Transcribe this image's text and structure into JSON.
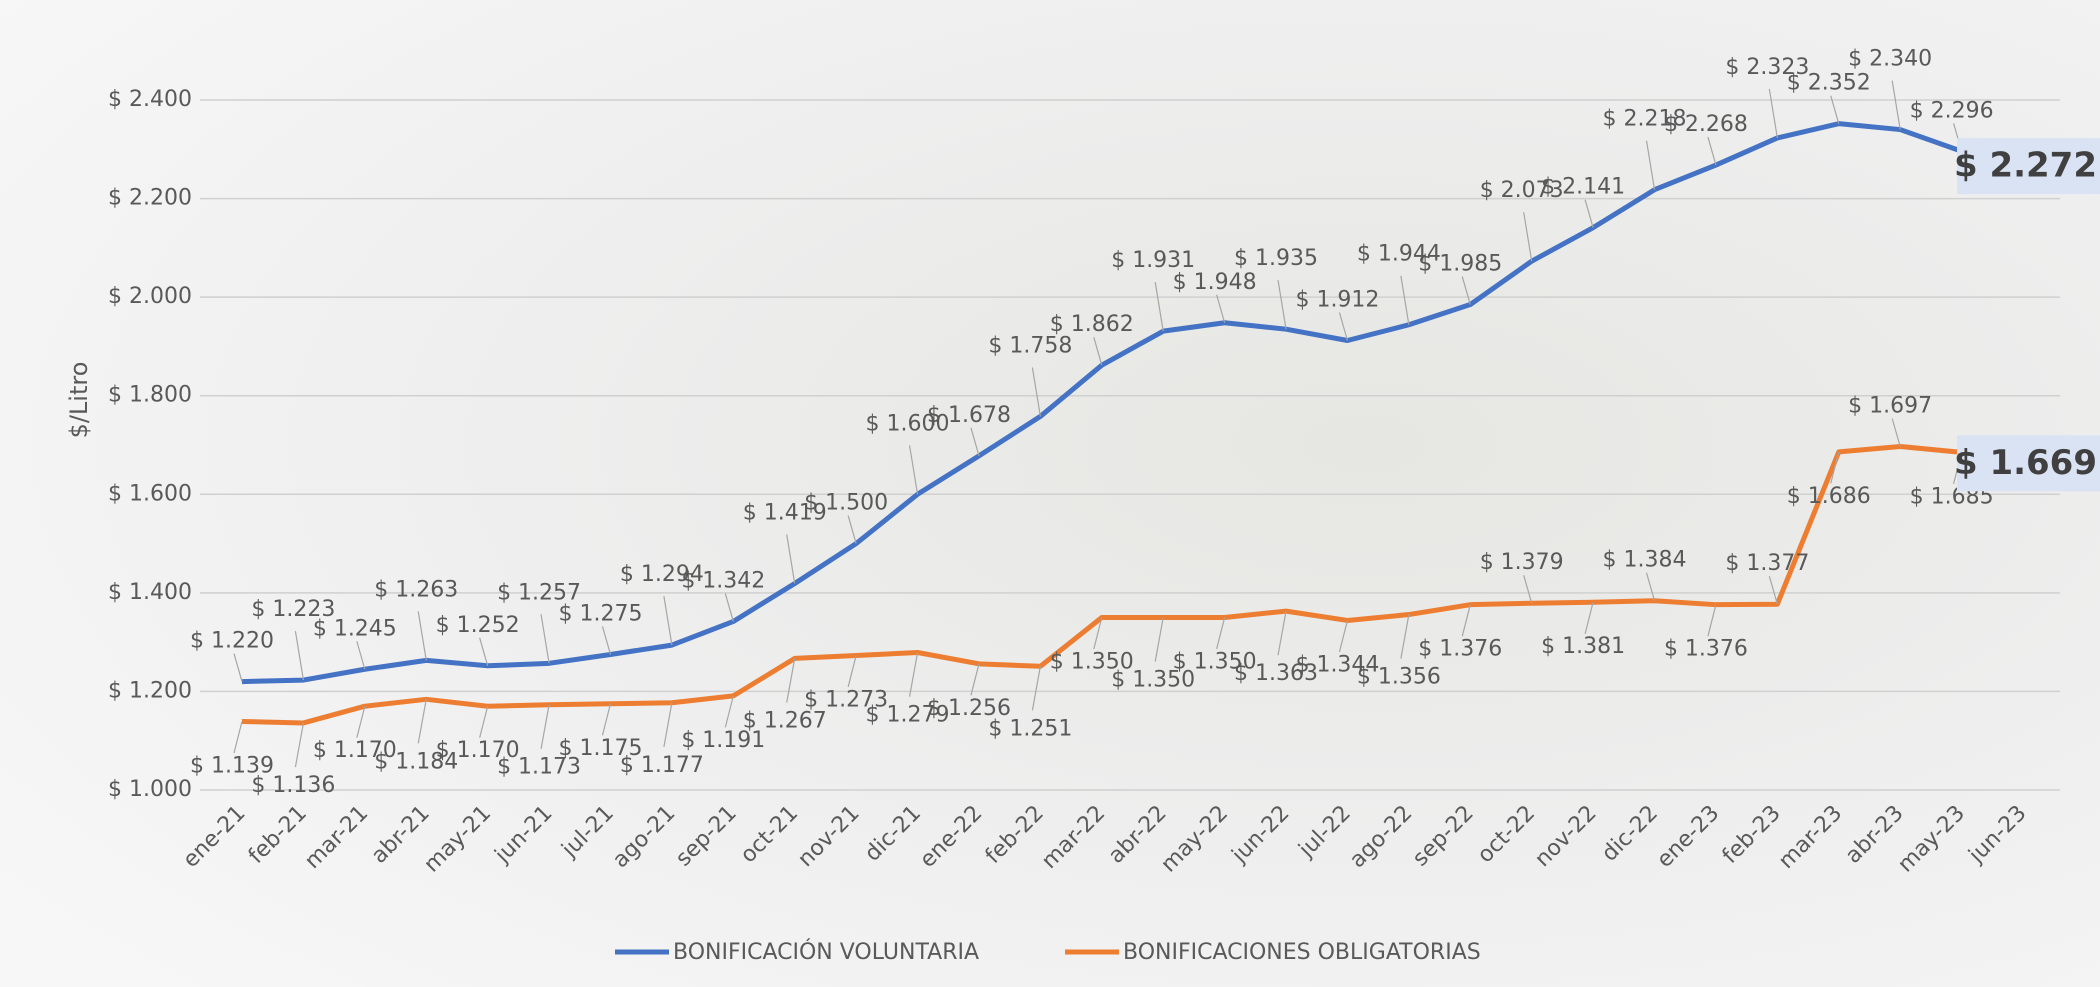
{
  "chart_data": {
    "type": "line",
    "ylabel": "$/Litro",
    "categories": [
      "ene-21",
      "feb-21",
      "mar-21",
      "abr-21",
      "may-21",
      "jun-21",
      "jul-21",
      "ago-21",
      "sep-21",
      "oct-21",
      "nov-21",
      "dic-21",
      "ene-22",
      "feb-22",
      "mar-22",
      "abr-22",
      "may-22",
      "jun-22",
      "jul-22",
      "ago-22",
      "sep-22",
      "oct-22",
      "nov-22",
      "dic-22",
      "ene-23",
      "feb-23",
      "mar-23",
      "abr-23",
      "may-23",
      "jun-23"
    ],
    "series": [
      {
        "name": "BONIFICACIÓN VOLUNTARIA",
        "color": "#4472c4",
        "values": [
          1220,
          1223,
          1245,
          1263,
          1252,
          1257,
          1275,
          1294,
          1342,
          1419,
          1500,
          1600,
          1678,
          1758,
          1862,
          1931,
          1948,
          1935,
          1912,
          1944,
          1985,
          2073,
          2141,
          2218,
          2268,
          2323,
          2352,
          2340,
          2296,
          2272
        ],
        "value_labels": [
          "$ 1.220",
          "$ 1.223",
          "$ 1.245",
          "$ 1.263",
          "$ 1.252",
          "$ 1.257",
          "$ 1.275",
          "$ 1.294",
          "$ 1.342",
          "$ 1.419",
          "$ 1.500",
          "$ 1.600",
          "$ 1.678",
          "$ 1.758",
          "$ 1.862",
          "$ 1.931",
          "$ 1.948",
          "$ 1.935",
          "$ 1.912",
          "$ 1.944",
          "$ 1.985",
          "$ 2.073",
          "$ 2.141",
          "$ 2.218",
          "$ 2.268",
          "$ 2.323",
          "$ 2.352",
          "$ 2.340",
          "$ 2.296",
          "$ 2.272"
        ]
      },
      {
        "name": "BONIFICACIONES OBLIGATORIAS",
        "color": "#ed7d31",
        "values": [
          1139,
          1136,
          1170,
          1184,
          1170,
          1173,
          1175,
          1177,
          1191,
          1267,
          1273,
          1279,
          1256,
          1251,
          1350,
          1350,
          1350,
          1363,
          1344,
          1356,
          1376,
          1379,
          1381,
          1384,
          1376,
          1377,
          1686,
          1697,
          1685,
          1669
        ],
        "value_labels": [
          "$ 1.139",
          "$ 1.136",
          "$ 1.170",
          "$ 1.184",
          "$ 1.170",
          "$ 1.173",
          "$ 1.175",
          "$ 1.177",
          "$ 1.191",
          "$ 1.267",
          "$ 1.273",
          "$ 1.279",
          "$ 1.256",
          "$ 1.251",
          "$ 1.350",
          "$ 1.350",
          "$ 1.350",
          "$ 1.363",
          "$ 1.344",
          "$ 1.356",
          "$ 1.376",
          "$ 1.379",
          "$ 1.381",
          "$ 1.384",
          "$ 1.376",
          "$ 1.377",
          "$ 1.686",
          "$ 1.697",
          "$ 1.685",
          "$ 1.669"
        ]
      }
    ],
    "ylim": [
      1000,
      2400
    ],
    "yticks": [
      {
        "value": 1000,
        "label": "$ 1.000"
      },
      {
        "value": 1200,
        "label": "$ 1.200"
      },
      {
        "value": 1400,
        "label": "$ 1.400"
      },
      {
        "value": 1600,
        "label": "$ 1.600"
      },
      {
        "value": 1800,
        "label": "$ 1.800"
      },
      {
        "value": 2000,
        "label": "$ 2.000"
      },
      {
        "value": 2200,
        "label": "$ 2.200"
      },
      {
        "value": 2400,
        "label": "$ 2.400"
      }
    ],
    "grid": true,
    "legend": "bottom"
  }
}
